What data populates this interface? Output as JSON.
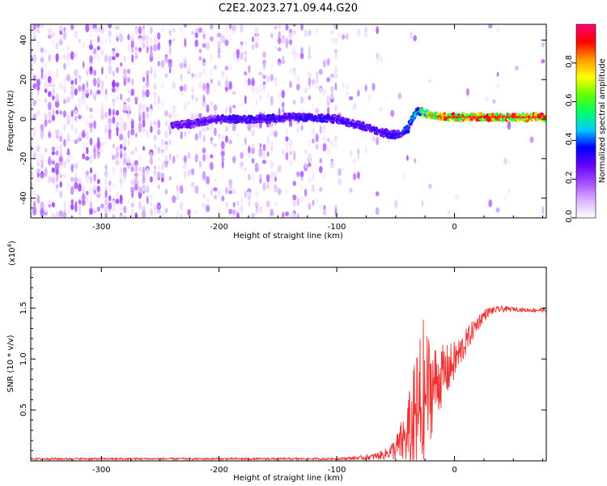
{
  "title": "C2E2.2023.271.09.44.G20",
  "colors": {
    "snr_line": "#ee3333",
    "colorbar_stops": [
      "#ffffff",
      "#d9b3ff",
      "#a64dff",
      "#6600ff",
      "#0000ff",
      "#00ccff",
      "#00ff66",
      "#66ff00",
      "#ffff00",
      "#ff9900",
      "#ff0000",
      "#ff0077"
    ]
  },
  "chart_data": [
    {
      "type": "heatmap",
      "name": "spectrogram",
      "xlabel": "Height of straight line (km)",
      "ylabel": "Frequency (Hz)",
      "xlim": [
        -360,
        78
      ],
      "ylim": [
        -50,
        48
      ],
      "xticks": [
        -300,
        -200,
        -100,
        0
      ],
      "yticks": [
        -40,
        -20,
        0,
        20,
        40
      ],
      "colorbar": {
        "label": "Normalized spectral amplitude",
        "range": [
          0.0,
          1.0
        ],
        "ticks": [
          "0.0",
          "0.2",
          "0.4",
          "0.6",
          "0.8"
        ]
      },
      "ridge": {
        "x": [
          -240,
          -220,
          -200,
          -180,
          -160,
          -140,
          -120,
          -100,
          -90,
          -80,
          -70,
          -60,
          -50,
          -45,
          -40,
          -35,
          -30,
          -25,
          -20,
          -10,
          0,
          20,
          40,
          60,
          78
        ],
        "y": [
          -3,
          -2,
          0,
          0,
          0,
          1,
          1,
          0,
          -2,
          -3,
          -5,
          -7,
          -8,
          -7,
          -5,
          2,
          4,
          3,
          2,
          1,
          1,
          1,
          1,
          1,
          1
        ],
        "amplitude": [
          0.28,
          0.3,
          0.32,
          0.33,
          0.33,
          0.34,
          0.35,
          0.35,
          0.34,
          0.33,
          0.33,
          0.33,
          0.35,
          0.38,
          0.42,
          0.48,
          0.55,
          0.7,
          0.85,
          0.9,
          0.9,
          0.9,
          0.92,
          0.92,
          0.92
        ]
      }
    },
    {
      "type": "line",
      "name": "snr",
      "xlabel": "Height of straight line (km)",
      "ylabel": "SNR (10 * v/v)",
      "yscale_label": "(x10",
      "yscale_exponent": "4",
      "scale_suffix": ")",
      "xlim": [
        -360,
        78
      ],
      "ylim": [
        0,
        1.9
      ],
      "xticks": [
        -300,
        -200,
        -100,
        0
      ],
      "yticks": [
        "0.5",
        "1.0",
        "1.5"
      ],
      "ytick_values": [
        0.5,
        1.0,
        1.5
      ],
      "series": [
        {
          "x": [
            -360,
            -300,
            -250,
            -200,
            -150,
            -100,
            -80,
            -70,
            -60,
            -55,
            -50,
            -45,
            -40,
            -35,
            -30,
            -27,
            -25,
            -20,
            -15,
            -10,
            -5,
            0,
            5,
            10,
            15,
            20,
            25,
            30,
            40,
            50,
            60,
            70,
            78
          ],
          "y": [
            0.02,
            0.02,
            0.02,
            0.02,
            0.02,
            0.02,
            0.03,
            0.04,
            0.06,
            0.09,
            0.12,
            0.18,
            0.25,
            0.35,
            0.45,
            0.55,
            0.65,
            0.72,
            0.78,
            0.84,
            0.9,
            0.98,
            1.07,
            1.17,
            1.27,
            1.36,
            1.43,
            1.47,
            1.49,
            1.49,
            1.48,
            1.48,
            1.48
          ],
          "spread": [
            0.01,
            0.01,
            0.01,
            0.01,
            0.01,
            0.01,
            0.02,
            0.03,
            0.05,
            0.07,
            0.12,
            0.22,
            0.35,
            0.55,
            0.8,
            0.9,
            0.7,
            0.5,
            0.35,
            0.3,
            0.25,
            0.2,
            0.16,
            0.13,
            0.1,
            0.08,
            0.06,
            0.04,
            0.03,
            0.02,
            0.02,
            0.02,
            0.02
          ]
        }
      ]
    }
  ]
}
